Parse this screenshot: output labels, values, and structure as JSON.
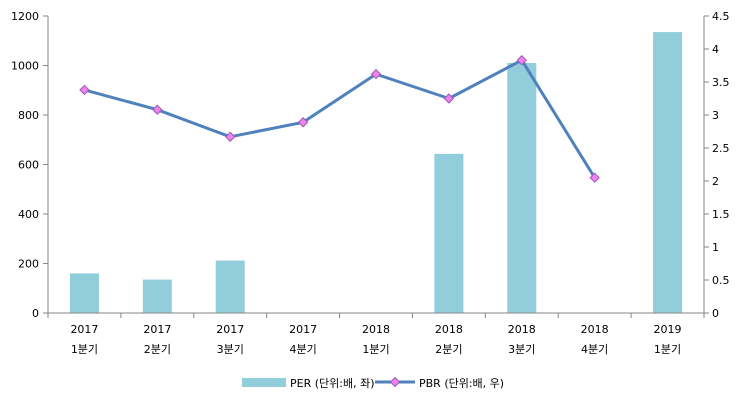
{
  "chart_data": {
    "type": "bar+line",
    "categories": [
      [
        "2017",
        "1분기"
      ],
      [
        "2017",
        "2분기"
      ],
      [
        "2017",
        "3분기"
      ],
      [
        "2017",
        "4분기"
      ],
      [
        "2018",
        "1분기"
      ],
      [
        "2018",
        "2분기"
      ],
      [
        "2018",
        "3분기"
      ],
      [
        "2018",
        "4분기"
      ],
      [
        "2019",
        "1분기"
      ]
    ],
    "series": [
      {
        "name": "PER (단위:배, 좌)",
        "type": "bar",
        "axis": "left",
        "color": "#92cddc",
        "values": [
          160,
          135,
          212,
          null,
          null,
          643,
          1010,
          null,
          1135
        ]
      },
      {
        "name": "PBR (단위:배, 우)",
        "type": "line",
        "axis": "right",
        "line_color": "#4f81bd",
        "marker_color": "#ee82ee",
        "values": [
          3.38,
          3.08,
          2.67,
          2.89,
          3.62,
          3.25,
          3.83,
          2.05,
          null
        ]
      }
    ],
    "y_left": {
      "min": 0,
      "max": 1200,
      "ticks": [
        "0",
        "200",
        "400",
        "600",
        "800",
        "1000",
        "1200"
      ]
    },
    "y_right": {
      "min": 0,
      "max": 4.5,
      "ticks": [
        "0",
        "0.5",
        "1",
        "1.5",
        "2",
        "2.5",
        "3",
        "3.5",
        "4",
        "4.5"
      ]
    },
    "grid": false,
    "legend_position": "bottom"
  }
}
